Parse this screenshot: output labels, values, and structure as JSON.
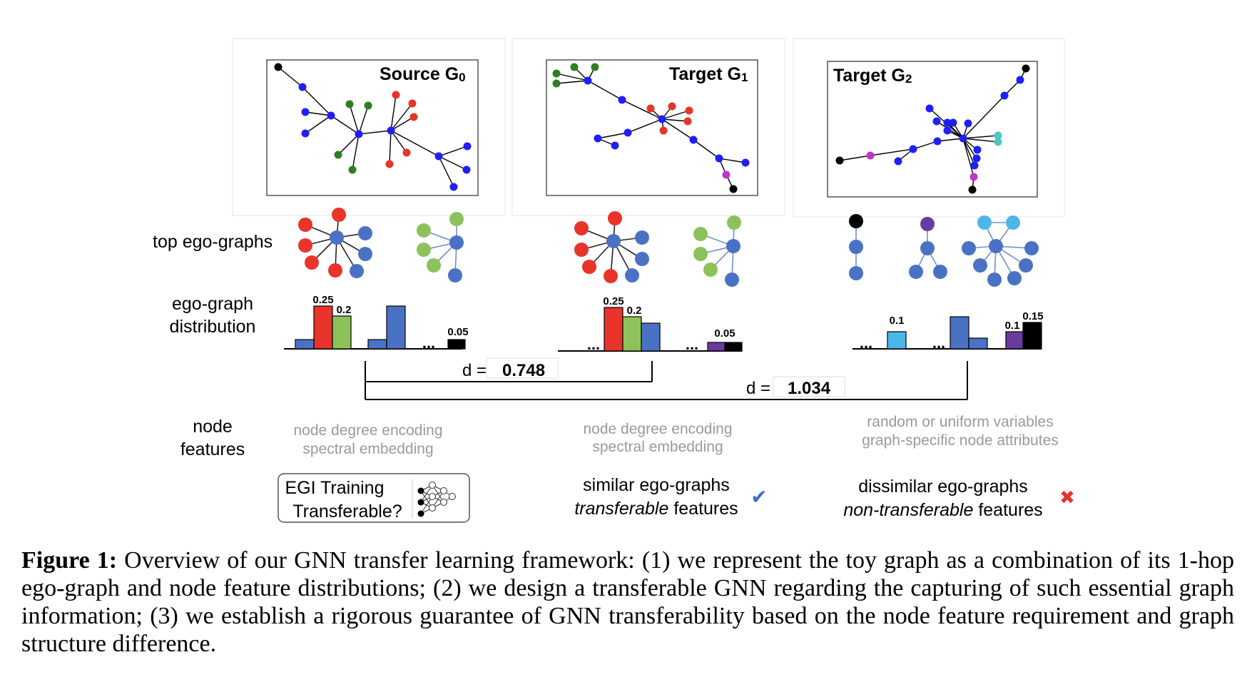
{
  "colors": {
    "blue": "#1f1ff5",
    "red": "#e8342a",
    "green": "#2e7d22",
    "magenta": "#c035c9",
    "teal": "#4ec7c4",
    "black": "#000000",
    "ego_blue": "#4a72c4",
    "ego_red": "#e8342a",
    "ego_green": "#8dc25a",
    "ego_purple": "#6b3a9e",
    "ego_cyan": "#4db6e8",
    "gray_text": "#9a9a9a",
    "check_blue": "#3f6ec4",
    "cross_red": "#e3352c"
  },
  "graphs": {
    "g0_title": "Source G",
    "g0_sub": "0",
    "g1_title": "Target G",
    "g1_sub": "1",
    "g2_title": "Target G",
    "g2_sub": "2"
  },
  "labels": {
    "top_ego": "top ego-graphs",
    "ego_dist_1": "ego-graph",
    "ego_dist_2": "distribution",
    "node_1": "node",
    "node_2": "features",
    "ellipsis": "..."
  },
  "bar_values": {
    "src_red": "0.25",
    "src_green": "0.2",
    "src_black": "0.05",
    "t1_red": "0.25",
    "t1_green": "0.2",
    "t1_black": "0.05",
    "t2_cyan": "0.1",
    "t2_purple": "0.1",
    "t2_black": "0.15"
  },
  "distances": {
    "d_prefix": "d =",
    "d1": "0.748",
    "d2": "1.034"
  },
  "features": {
    "src_1": "node degree encoding",
    "src_2": "spectral embedding",
    "t1_1": "node degree encoding",
    "t1_2": "spectral embedding",
    "t2_1": "random or uniform variables",
    "t2_2": "graph-specific node attributes"
  },
  "bottom": {
    "egi_1": "EGI Training",
    "egi_2": "Transferable?",
    "sim_1": "similar ego-graphs",
    "sim_2_italic": "transferable",
    "sim_2_rest": " features",
    "dis_1": "dissimilar ego-graphs",
    "dis_2_italic": "non-transferable",
    "dis_2_rest": " features",
    "check": "✔",
    "cross": "✖"
  },
  "caption": {
    "label": "Figure 1:",
    "text": " Overview of our GNN transfer learning framework: (1) we represent the toy graph as a combination of its 1-hop ego-graph and node feature distributions; (2) we design a transferable GNN regarding the capturing of such essential graph information; (3) we establish a rigorous guarantee of GNN transferability based on the node feature requirement and graph structure difference."
  }
}
